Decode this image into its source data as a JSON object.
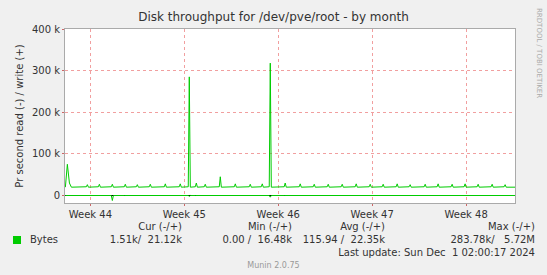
{
  "chart_data": {
    "type": "line",
    "title": "Disk throughput for /dev/pve/root - by month",
    "y_label": "Pr second read (-) / write (+)",
    "x": [
      43.734,
      43.755,
      43.777,
      43.798,
      43.957,
      43.968,
      43.979,
      44.085,
      44.096,
      44.107,
      44.223,
      44.234,
      44.245,
      44.361,
      44.372,
      44.383,
      44.489,
      44.5,
      44.511,
      44.627,
      44.638,
      44.649,
      44.787,
      44.798,
      44.809,
      44.946,
      44.957,
      44.968,
      45.042,
      45.053,
      45.064,
      45.117,
      45.128,
      45.139,
      45.212,
      45.223,
      45.234,
      45.372,
      45.383,
      45.394,
      45.532,
      45.543,
      45.554,
      45.691,
      45.702,
      45.713,
      45.819,
      45.83,
      45.841,
      45.904,
      45.915,
      45.926,
      46.063,
      46.074,
      46.085,
      46.223,
      46.234,
      46.245,
      46.372,
      46.383,
      46.394,
      46.521,
      46.532,
      46.543,
      46.67,
      46.681,
      46.692,
      46.819,
      46.83,
      46.841,
      46.968,
      46.979,
      46.99,
      47.106,
      47.117,
      47.128,
      47.255,
      47.266,
      47.277,
      47.393,
      47.404,
      47.415,
      47.553,
      47.564,
      47.575,
      47.691,
      47.702,
      47.713,
      47.84,
      47.851,
      47.862,
      47.978,
      47.989,
      48.0,
      48.117,
      48.128,
      48.139,
      48.266,
      48.277,
      48.288,
      48.404,
      48.415,
      48.426,
      48.52
    ],
    "series": [
      {
        "name": "Bytes",
        "color": "#00cc00",
        "values": [
          20000,
          75000,
          30000,
          20000,
          21000,
          26000,
          20000,
          21000,
          27000,
          20000,
          21000,
          27000,
          20000,
          21000,
          27000,
          20000,
          21000,
          26000,
          20000,
          21000,
          27000,
          20000,
          21000,
          28000,
          20000,
          21000,
          28000,
          20000,
          21000,
          285000,
          20000,
          21000,
          30000,
          20000,
          21000,
          27000,
          20000,
          21000,
          45000,
          20000,
          21000,
          28000,
          20000,
          21000,
          27000,
          20000,
          21000,
          28000,
          20000,
          21000,
          318000,
          20000,
          21000,
          30000,
          20000,
          21000,
          28000,
          20000,
          21000,
          27000,
          20000,
          21000,
          27000,
          20000,
          21000,
          27000,
          20000,
          21000,
          28000,
          20000,
          21000,
          27000,
          20000,
          21000,
          27000,
          20000,
          21000,
          28000,
          20000,
          21000,
          26000,
          20000,
          21000,
          27000,
          20000,
          21000,
          28000,
          20000,
          21000,
          27000,
          20000,
          21000,
          28000,
          20000,
          21000,
          27000,
          20000,
          21000,
          27000,
          20000,
          21000,
          26000,
          20000,
          20000
        ],
        "negative_values": [
          0,
          0,
          0,
          0,
          0,
          0,
          0,
          0,
          0,
          0,
          0,
          -12000,
          0,
          0,
          0,
          0,
          0,
          0,
          0,
          0,
          0,
          0,
          0,
          0,
          0,
          0,
          0,
          0,
          0,
          -2000,
          0,
          0,
          0,
          0,
          0,
          0,
          0,
          0,
          0,
          0,
          0,
          0,
          0,
          0,
          0,
          0,
          0,
          0,
          0,
          0,
          -4000,
          0,
          0,
          0,
          0,
          0,
          0,
          0,
          0,
          0,
          0,
          0,
          0,
          0,
          0,
          0,
          0,
          0,
          0,
          0,
          0,
          0,
          0,
          0,
          0,
          0,
          0,
          0,
          0,
          0,
          0,
          0,
          0,
          0,
          0,
          0,
          0,
          0,
          0,
          0,
          0,
          0,
          0,
          0,
          0,
          0,
          0,
          0,
          0,
          0,
          0,
          0,
          0,
          0
        ],
        "stats": [
          "1.51k/  21.12k",
          "0.00 /  16.48k",
          "115.94 /  22.35k",
          "283.78k/   5.72M"
        ]
      }
    ],
    "stats_columns": [
      "Cur (-/+)",
      "Min (-/+)",
      "Avg (-/+)",
      "Max (-/+)"
    ],
    "last_update": "Last update: Sun Dec  1 02:00:17 2024",
    "footer": "Munin 2.0.75",
    "watermark": "RRDTOOL / TOBI OETIKER",
    "xlim": [
      43.73,
      48.52
    ],
    "xticks": [
      {
        "value": 44,
        "label": "Week 44"
      },
      {
        "value": 45,
        "label": "Week 45"
      },
      {
        "value": 46,
        "label": "Week 46"
      },
      {
        "value": 47,
        "label": "Week 47"
      },
      {
        "value": 48,
        "label": "Week 48"
      }
    ],
    "ylim": [
      -18000,
      400000
    ],
    "yticks": [
      0,
      {
        "value": 100000,
        "label": "100 k"
      },
      {
        "value": 200000,
        "label": "200 k"
      },
      {
        "value": 300000,
        "label": "300 k"
      },
      {
        "value": 400000,
        "label": "400 k"
      }
    ],
    "grid": true
  }
}
